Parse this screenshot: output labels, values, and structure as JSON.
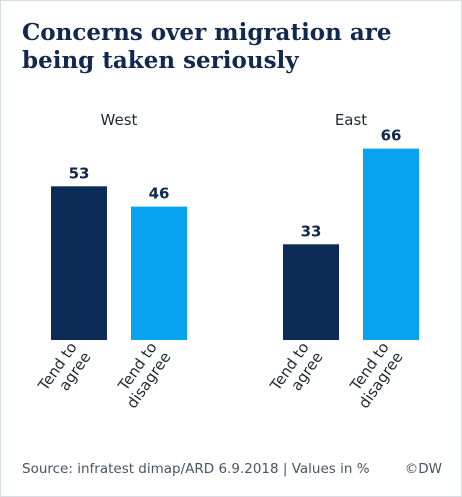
{
  "title": "Concerns over migration are being taken seriously",
  "footer": {
    "source": "Source: infratest dimap/ARD 6.9.2018 | Values in %",
    "credit": "©DW"
  },
  "colors": {
    "agree": "#0c2c57",
    "disagree": "#07a3f0",
    "title": "#12284c"
  },
  "chart_data": {
    "type": "bar",
    "categories": [
      "Tend to agree",
      "Tend to disagree"
    ],
    "groups": [
      {
        "name": "West",
        "values": [
          53,
          46
        ]
      },
      {
        "name": "East",
        "values": [
          33,
          66
        ]
      }
    ],
    "value_labels": [
      "53",
      "46",
      "33",
      "66"
    ],
    "ylim": [
      0,
      75
    ],
    "grid": false,
    "legend": "none"
  }
}
